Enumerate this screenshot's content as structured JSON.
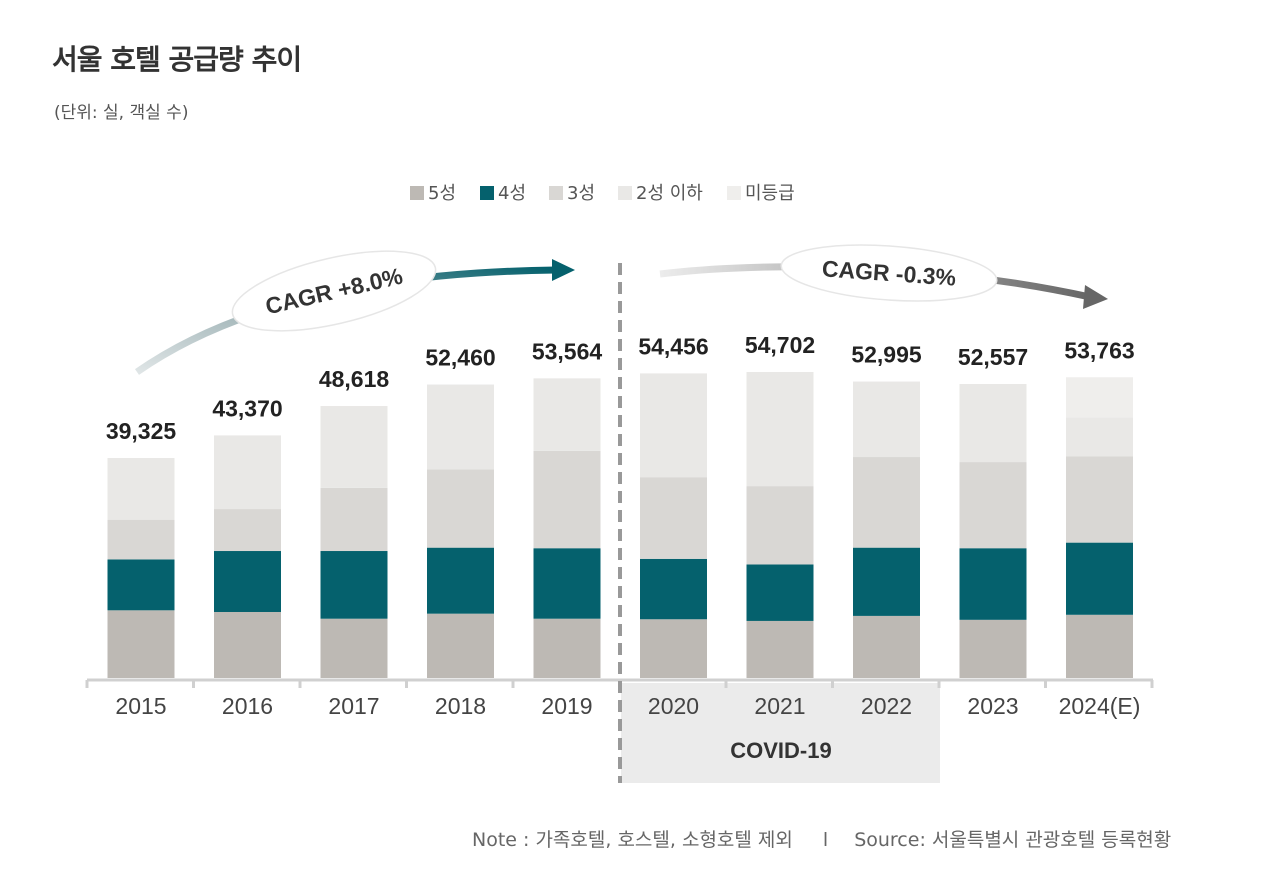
{
  "title": "서울 호텔 공급량 추이",
  "unit": "(단위: 실, 객실 수)",
  "note": "Note : 가족호텔, 호스텔, 소형호텔 제외",
  "note_sep": "l",
  "source": "Source: 서울특별시 관광호텔 등록현황",
  "covid_label": "COVID-19",
  "cagr_before": "CAGR +8.0%",
  "cagr_after": "CAGR -0.3%",
  "colors": {
    "s5": "#bdb9b4",
    "s4": "#05616d",
    "s3": "#d9d7d4",
    "s2": "#e9e8e6",
    "s0": "#efeeec"
  },
  "chart_data": {
    "type": "bar",
    "stacked": true,
    "categories": [
      "2015",
      "2016",
      "2017",
      "2018",
      "2019",
      "2020",
      "2021",
      "2022",
      "2023",
      "2024(E)"
    ],
    "totals": [
      39325,
      43370,
      48618,
      52460,
      53564,
      54456,
      54702,
      52995,
      52557,
      53763
    ],
    "total_labels": [
      "39,325",
      "43,370",
      "48,618",
      "52,460",
      "53,564",
      "54,456",
      "54,702",
      "52,995",
      "52,557",
      "53,763"
    ],
    "series": [
      {
        "name": "5성",
        "color": "#bdb9b4",
        "values": [
          12100,
          11800,
          10600,
          11500,
          10600,
          10500,
          10200,
          11100,
          10400,
          11300
        ]
      },
      {
        "name": "4성",
        "color": "#05616d",
        "values": [
          9100,
          10900,
          12100,
          11800,
          12600,
          10800,
          10100,
          12200,
          12800,
          12900
        ]
      },
      {
        "name": "3성",
        "color": "#d9d7d4",
        "values": [
          7100,
          7500,
          11300,
          14000,
          17400,
          14600,
          14000,
          16200,
          15400,
          15400
        ]
      },
      {
        "name": "2성 이하",
        "color": "#e9e8e6",
        "values": [
          11025,
          13170,
          14618,
          15160,
          12964,
          18556,
          20402,
          13495,
          13957,
          7000
        ]
      },
      {
        "name": "미등급",
        "color": "#efeeec",
        "values": [
          0,
          0,
          0,
          0,
          0,
          0,
          0,
          0,
          0,
          7163
        ]
      }
    ],
    "ylim": [
      0,
      60000
    ],
    "legend_position": "top-center",
    "xlabel": "",
    "ylabel": "",
    "grid": false
  }
}
